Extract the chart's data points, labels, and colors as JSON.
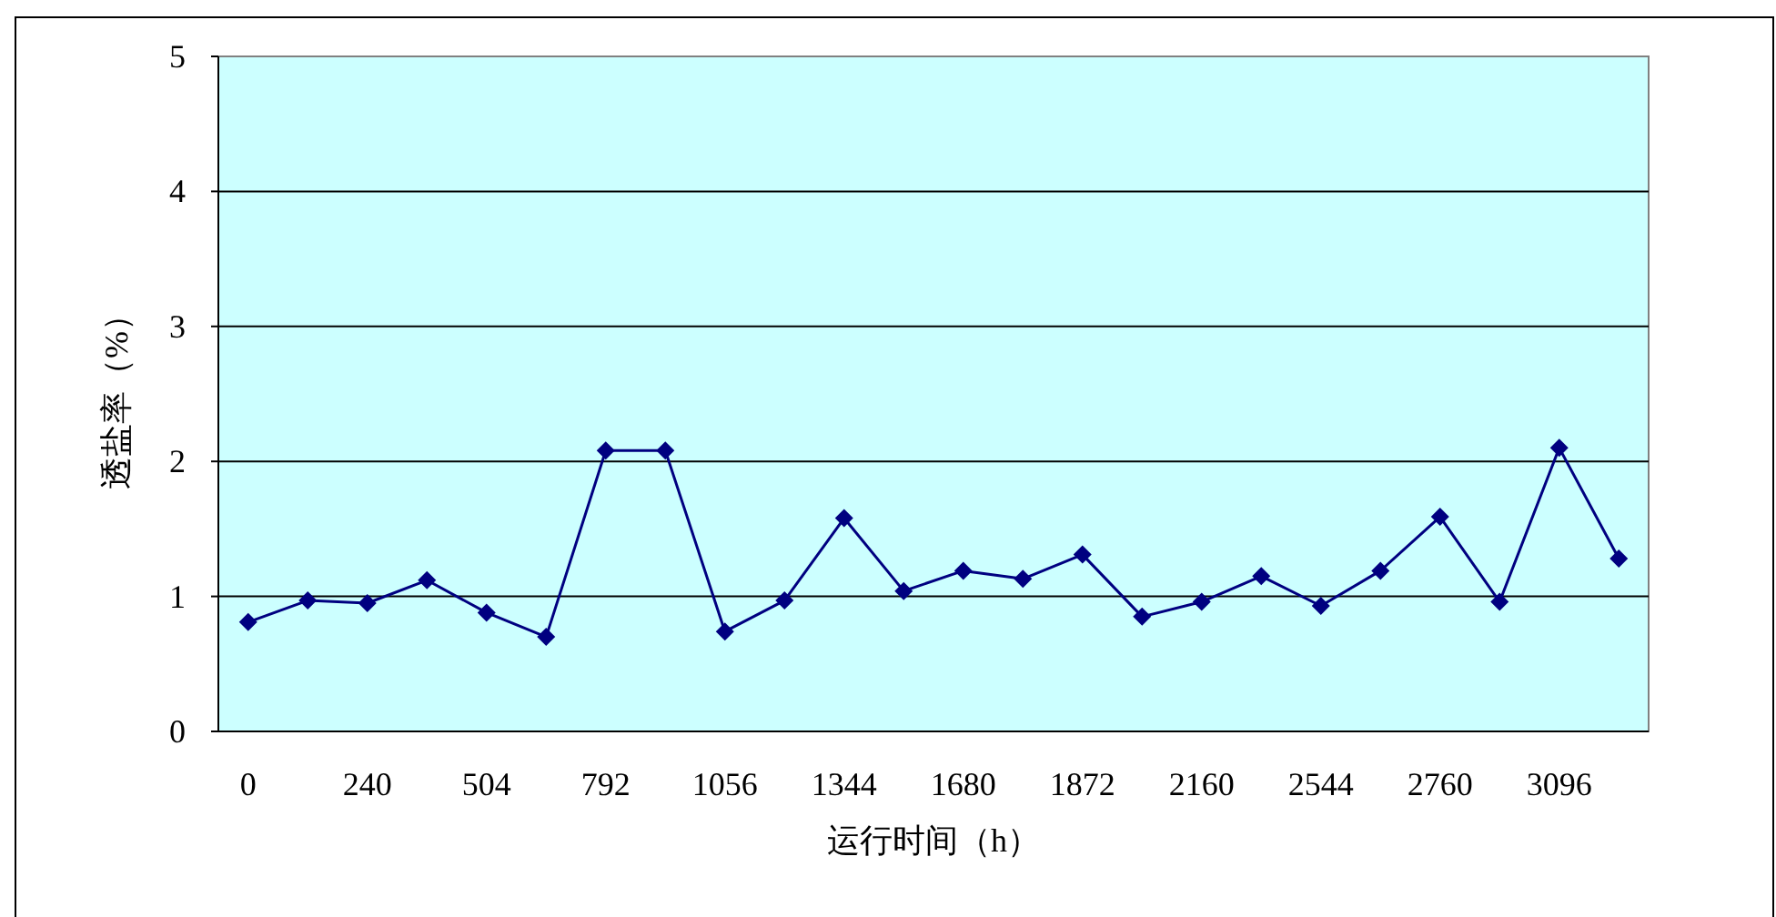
{
  "chart_data": {
    "type": "line",
    "xlabel": "运行时间（h）",
    "ylabel": "透盐率（%）",
    "categories": [
      "0",
      null,
      "240",
      null,
      "504",
      null,
      "792",
      null,
      "1056",
      null,
      "1344",
      null,
      "1680",
      null,
      "1872",
      null,
      "2160",
      null,
      "2544",
      null,
      "2760",
      null,
      "3096",
      null
    ],
    "series": [
      {
        "color": "#000080",
        "values": [
          0.81,
          0.97,
          0.95,
          1.12,
          0.88,
          0.7,
          2.08,
          2.08,
          0.74,
          0.97,
          1.58,
          1.04,
          1.19,
          1.13,
          1.31,
          0.85,
          0.96,
          1.15,
          0.93,
          1.19,
          1.59,
          0.96,
          2.1,
          1.28
        ]
      }
    ],
    "ylim": [
      0,
      5
    ],
    "yticks": [
      0,
      1,
      2,
      3,
      4,
      5
    ],
    "grid": "y",
    "marker": "diamond",
    "line_style": "solid"
  }
}
